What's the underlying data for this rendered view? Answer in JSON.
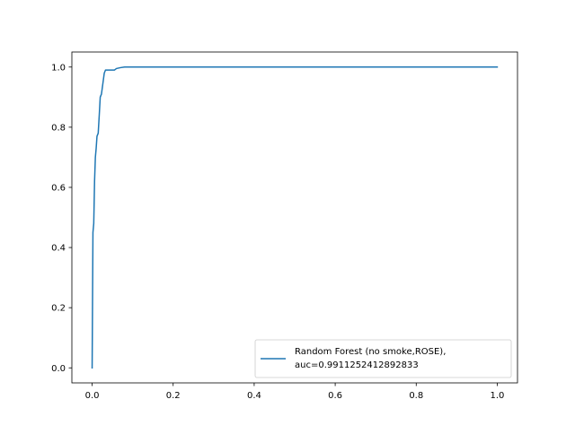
{
  "chart_data": {
    "type": "line",
    "title": "",
    "xlabel": "",
    "ylabel": "",
    "xlim": [
      -0.05,
      1.05
    ],
    "ylim": [
      -0.05,
      1.05
    ],
    "x_ticks": [
      0.0,
      0.2,
      0.4,
      0.6,
      0.8,
      1.0
    ],
    "y_ticks": [
      0.0,
      0.2,
      0.4,
      0.6,
      0.8,
      1.0
    ],
    "x_tick_labels": [
      "0.0",
      "0.2",
      "0.4",
      "0.6",
      "0.8",
      "1.0"
    ],
    "y_tick_labels": [
      "0.0",
      "0.2",
      "0.4",
      "0.6",
      "0.8",
      "1.0"
    ],
    "grid": false,
    "legend_position": "lower-right",
    "series": [
      {
        "name_lines": [
          "Random Forest (no smoke,ROSE),",
          "auc=0.9911252412892833"
        ],
        "color": "#1f77b4",
        "x": [
          0.0,
          0.002,
          0.004,
          0.005,
          0.006,
          0.008,
          0.01,
          0.012,
          0.015,
          0.018,
          0.02,
          0.023,
          0.025,
          0.028,
          0.03,
          0.033,
          0.035,
          0.04,
          0.045,
          0.05,
          0.055,
          0.06,
          0.07,
          0.08,
          0.09,
          0.1,
          0.2,
          0.4,
          0.6,
          0.8,
          1.0
        ],
        "y": [
          0.0,
          0.45,
          0.48,
          0.55,
          0.62,
          0.7,
          0.73,
          0.77,
          0.78,
          0.85,
          0.9,
          0.91,
          0.93,
          0.96,
          0.98,
          0.99,
          0.99,
          0.99,
          0.99,
          0.99,
          0.99,
          0.995,
          0.998,
          1.0,
          1.0,
          1.0,
          1.0,
          1.0,
          1.0,
          1.0,
          1.0
        ]
      }
    ]
  }
}
